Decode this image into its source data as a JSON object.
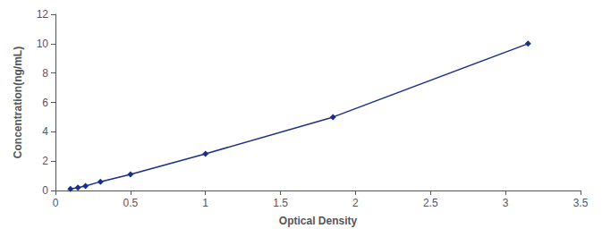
{
  "chart_data": {
    "type": "line",
    "x": [
      0.1,
      0.15,
      0.2,
      0.3,
      0.5,
      1.0,
      1.85,
      3.15
    ],
    "values": [
      0.1,
      0.2,
      0.3,
      0.6,
      1.1,
      2.5,
      5.0,
      10.0
    ],
    "xlabel": "Optical Density",
    "ylabel": "Concentration(ng/mL)",
    "xlim": [
      0,
      3.5
    ],
    "ylim": [
      0,
      12
    ],
    "xticks": [
      0,
      0.5,
      1,
      1.5,
      2,
      2.5,
      3,
      3.5
    ],
    "yticks": [
      0,
      2,
      4,
      6,
      8,
      10,
      12
    ],
    "color": "#1a2f8a",
    "marker": "diamond",
    "grid": false
  }
}
